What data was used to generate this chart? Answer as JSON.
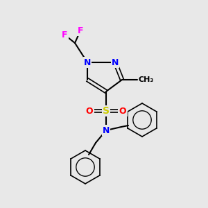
{
  "background_color": "#e8e8e8",
  "atom_colors": {
    "C": "#000000",
    "N": "#0000ff",
    "O": "#ff0000",
    "S": "#cccc00",
    "F": "#ff00ff",
    "H": "#000000"
  },
  "bond_color": "#000000",
  "figsize": [
    3.0,
    3.0
  ],
  "dpi": 100
}
